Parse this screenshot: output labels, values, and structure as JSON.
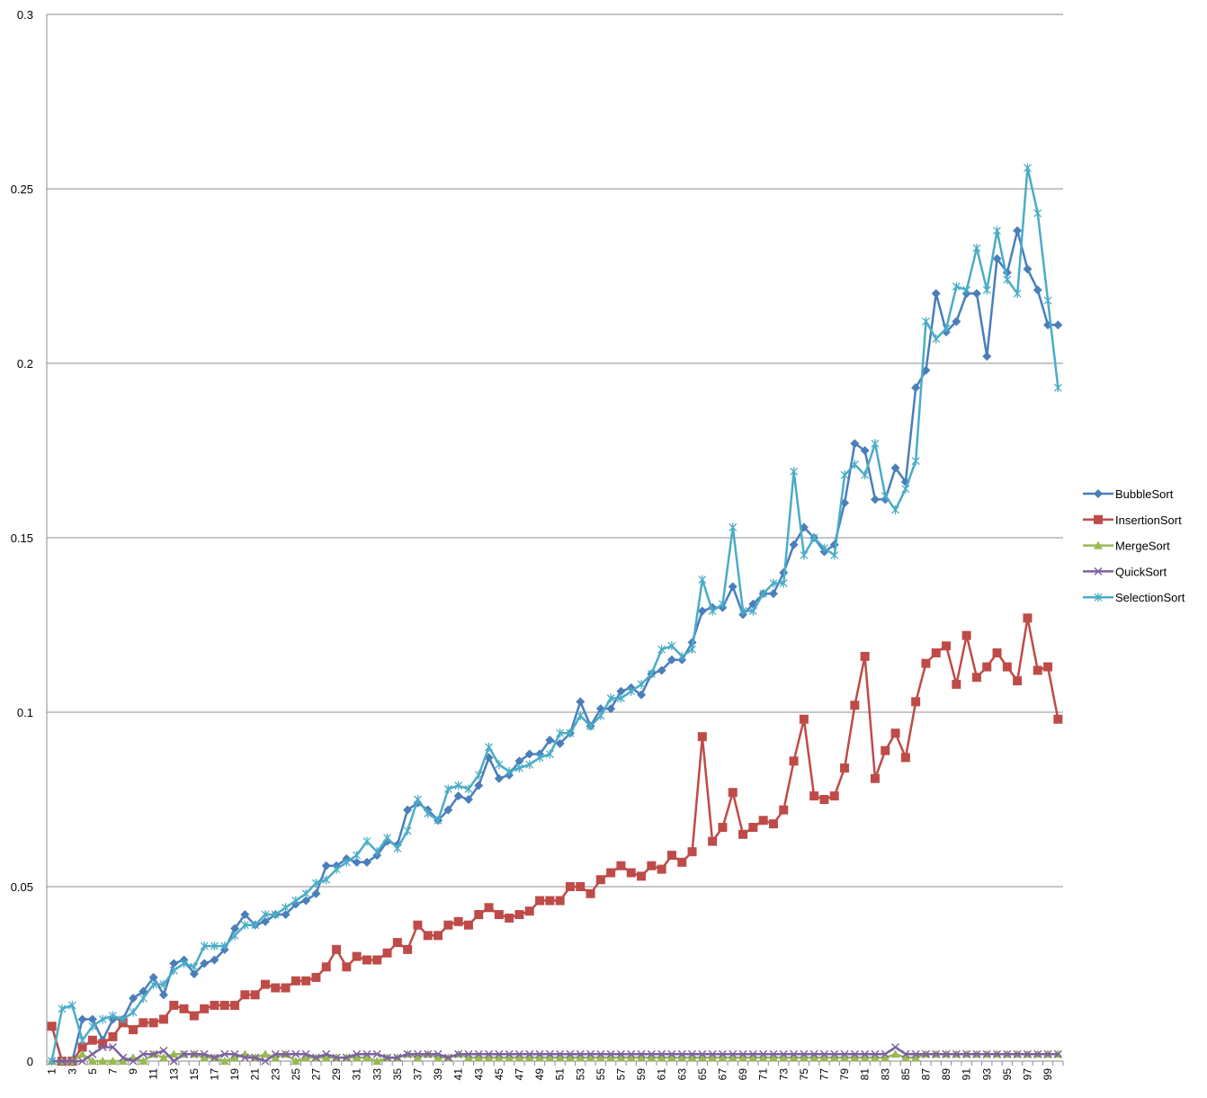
{
  "chart_data": {
    "type": "line",
    "title": "",
    "xlabel": "",
    "ylabel": "",
    "ylim": [
      0,
      0.3
    ],
    "yticks": [
      "0",
      "0.05",
      "0.1",
      "0.15",
      "0.2",
      "0.25",
      "0.3"
    ],
    "x": [
      1,
      2,
      3,
      4,
      5,
      6,
      7,
      8,
      9,
      10,
      11,
      12,
      13,
      14,
      15,
      16,
      17,
      18,
      19,
      20,
      21,
      22,
      23,
      24,
      25,
      26,
      27,
      28,
      29,
      30,
      31,
      32,
      33,
      34,
      35,
      36,
      37,
      38,
      39,
      40,
      41,
      42,
      43,
      44,
      45,
      46,
      47,
      48,
      49,
      50,
      51,
      52,
      53,
      54,
      55,
      56,
      57,
      58,
      59,
      60,
      61,
      62,
      63,
      64,
      65,
      66,
      67,
      68,
      69,
      70,
      71,
      72,
      73,
      74,
      75,
      76,
      77,
      78,
      79,
      80,
      81,
      82,
      83,
      84,
      85,
      86,
      87,
      88,
      89,
      90,
      91,
      92,
      93,
      94,
      95,
      96,
      97,
      98,
      99,
      100
    ],
    "x_tick_labels": [
      "1",
      "3",
      "5",
      "7",
      "9",
      "11",
      "13",
      "15",
      "17",
      "19",
      "21",
      "23",
      "25",
      "27",
      "29",
      "31",
      "33",
      "35",
      "37",
      "39",
      "41",
      "43",
      "45",
      "47",
      "49",
      "51",
      "53",
      "55",
      "57",
      "59",
      "61",
      "63",
      "65",
      "67",
      "69",
      "71",
      "73",
      "75",
      "77",
      "79",
      "81",
      "83",
      "85",
      "87",
      "89",
      "91",
      "93",
      "95",
      "97",
      "99"
    ],
    "grid": "horizontal",
    "legend_position": "right",
    "series": [
      {
        "name": "BubbleSort",
        "color": "#4A7EBB",
        "marker": "diamond",
        "values": [
          0.01,
          0.0,
          0.0,
          0.012,
          0.012,
          0.006,
          0.012,
          0.012,
          0.018,
          0.02,
          0.024,
          0.019,
          0.028,
          0.029,
          0.025,
          0.028,
          0.029,
          0.032,
          0.038,
          0.042,
          0.039,
          0.04,
          0.042,
          0.042,
          0.045,
          0.046,
          0.048,
          0.056,
          0.056,
          0.058,
          0.057,
          0.057,
          0.059,
          0.063,
          0.062,
          0.072,
          0.074,
          0.072,
          0.069,
          0.072,
          0.076,
          0.075,
          0.079,
          0.087,
          0.081,
          0.082,
          0.086,
          0.088,
          0.088,
          0.092,
          0.091,
          0.094,
          0.103,
          0.096,
          0.101,
          0.101,
          0.106,
          0.107,
          0.105,
          0.111,
          0.112,
          0.115,
          0.115,
          0.12,
          0.129,
          0.13,
          0.13,
          0.136,
          0.128,
          0.131,
          0.134,
          0.134,
          0.14,
          0.148,
          0.153,
          0.15,
          0.146,
          0.148,
          0.16,
          0.177,
          0.175,
          0.161,
          0.161,
          0.17,
          0.166,
          0.193,
          0.198,
          0.22,
          0.209,
          0.212,
          0.22,
          0.22,
          0.202,
          0.23,
          0.226,
          0.238,
          0.227,
          0.221,
          0.211,
          0.211
        ]
      },
      {
        "name": "InsertionSort",
        "color": "#BE4B48",
        "marker": "square",
        "values": [
          0.01,
          0.0,
          0.0,
          0.004,
          0.006,
          0.005,
          0.007,
          0.011,
          0.009,
          0.011,
          0.011,
          0.012,
          0.016,
          0.015,
          0.013,
          0.015,
          0.016,
          0.016,
          0.016,
          0.019,
          0.019,
          0.022,
          0.021,
          0.021,
          0.023,
          0.023,
          0.024,
          0.027,
          0.032,
          0.027,
          0.03,
          0.029,
          0.029,
          0.031,
          0.034,
          0.032,
          0.039,
          0.036,
          0.036,
          0.039,
          0.04,
          0.039,
          0.042,
          0.044,
          0.042,
          0.041,
          0.042,
          0.043,
          0.046,
          0.046,
          0.046,
          0.05,
          0.05,
          0.048,
          0.052,
          0.054,
          0.056,
          0.054,
          0.053,
          0.056,
          0.055,
          0.059,
          0.057,
          0.06,
          0.093,
          0.063,
          0.067,
          0.077,
          0.065,
          0.067,
          0.069,
          0.068,
          0.072,
          0.086,
          0.098,
          0.076,
          0.075,
          0.076,
          0.084,
          0.102,
          0.116,
          0.081,
          0.089,
          0.094,
          0.087,
          0.103,
          0.114,
          0.117,
          0.119,
          0.108,
          0.122,
          0.11,
          0.113,
          0.117,
          0.113,
          0.109,
          0.127,
          0.112,
          0.113,
          0.098
        ]
      },
      {
        "name": "MergeSort",
        "color": "#98B954",
        "marker": "triangle",
        "values": [
          0.0,
          0.0,
          0.0,
          0.002,
          0.0,
          0.0,
          0.0,
          0.0,
          0.001,
          0.0,
          0.002,
          0.001,
          0.002,
          0.002,
          0.002,
          0.001,
          0.001,
          0.0,
          0.001,
          0.002,
          0.001,
          0.002,
          0.001,
          0.002,
          0.0,
          0.001,
          0.001,
          0.001,
          0.001,
          0.001,
          0.001,
          0.001,
          0.0,
          0.001,
          0.001,
          0.002,
          0.001,
          0.002,
          0.001,
          0.001,
          0.002,
          0.001,
          0.001,
          0.001,
          0.001,
          0.001,
          0.001,
          0.001,
          0.001,
          0.001,
          0.001,
          0.001,
          0.001,
          0.001,
          0.001,
          0.001,
          0.001,
          0.001,
          0.001,
          0.001,
          0.001,
          0.001,
          0.001,
          0.001,
          0.001,
          0.001,
          0.001,
          0.001,
          0.001,
          0.001,
          0.001,
          0.001,
          0.001,
          0.001,
          0.001,
          0.001,
          0.001,
          0.001,
          0.001,
          0.001,
          0.001,
          0.001,
          0.001,
          0.002,
          0.001,
          0.001,
          0.002,
          0.002,
          0.002,
          0.002,
          0.002,
          0.002,
          0.002,
          0.002,
          0.002,
          0.002,
          0.002,
          0.002,
          0.002,
          0.002
        ]
      },
      {
        "name": "QuickSort",
        "color": "#7D60A0",
        "marker": "x",
        "values": [
          0.0,
          0.0,
          0.0,
          0.0,
          0.002,
          0.004,
          0.004,
          0.001,
          0.0,
          0.002,
          0.002,
          0.003,
          0.0,
          0.002,
          0.002,
          0.002,
          0.001,
          0.002,
          0.002,
          0.001,
          0.001,
          0.0,
          0.002,
          0.002,
          0.002,
          0.002,
          0.001,
          0.002,
          0.001,
          0.001,
          0.002,
          0.002,
          0.002,
          0.001,
          0.001,
          0.002,
          0.002,
          0.002,
          0.002,
          0.001,
          0.002,
          0.002,
          0.002,
          0.002,
          0.002,
          0.002,
          0.002,
          0.002,
          0.002,
          0.002,
          0.002,
          0.002,
          0.002,
          0.002,
          0.002,
          0.002,
          0.002,
          0.002,
          0.002,
          0.002,
          0.002,
          0.002,
          0.002,
          0.002,
          0.002,
          0.002,
          0.002,
          0.002,
          0.002,
          0.002,
          0.002,
          0.002,
          0.002,
          0.002,
          0.002,
          0.002,
          0.002,
          0.002,
          0.002,
          0.002,
          0.002,
          0.002,
          0.002,
          0.004,
          0.002,
          0.002,
          0.002,
          0.002,
          0.002,
          0.002,
          0.002,
          0.002,
          0.002,
          0.002,
          0.002,
          0.002,
          0.002,
          0.002,
          0.002,
          0.002
        ]
      },
      {
        "name": "SelectionSort",
        "color": "#4BACC6",
        "marker": "star",
        "values": [
          0.0,
          0.015,
          0.016,
          0.006,
          0.01,
          0.012,
          0.013,
          0.012,
          0.014,
          0.018,
          0.022,
          0.022,
          0.026,
          0.028,
          0.027,
          0.033,
          0.033,
          0.033,
          0.036,
          0.039,
          0.039,
          0.042,
          0.042,
          0.044,
          0.046,
          0.048,
          0.051,
          0.052,
          0.055,
          0.057,
          0.059,
          0.063,
          0.06,
          0.064,
          0.061,
          0.066,
          0.075,
          0.071,
          0.069,
          0.078,
          0.079,
          0.078,
          0.082,
          0.09,
          0.085,
          0.083,
          0.084,
          0.085,
          0.087,
          0.088,
          0.094,
          0.094,
          0.099,
          0.096,
          0.099,
          0.104,
          0.104,
          0.106,
          0.108,
          0.111,
          0.118,
          0.119,
          0.116,
          0.118,
          0.138,
          0.129,
          0.131,
          0.153,
          0.129,
          0.129,
          0.134,
          0.137,
          0.137,
          0.169,
          0.145,
          0.15,
          0.147,
          0.145,
          0.168,
          0.171,
          0.168,
          0.177,
          0.162,
          0.158,
          0.164,
          0.172,
          0.212,
          0.207,
          0.21,
          0.222,
          0.221,
          0.233,
          0.221,
          0.238,
          0.224,
          0.22,
          0.256,
          0.243,
          0.218,
          0.193
        ]
      }
    ]
  }
}
